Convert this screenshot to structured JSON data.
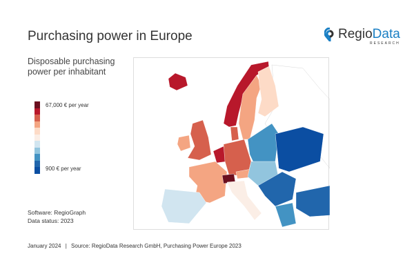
{
  "header": {
    "title": "Purchasing power in Europe",
    "subtitle": "Disposable purchasing power per inhabitant"
  },
  "logo": {
    "name_part1": "Regio",
    "name_part2": "Data",
    "tagline": "RESEARCH"
  },
  "legend": {
    "max_label": "67,000 € per year",
    "min_label": "900 € per year",
    "colors": [
      "#6b0f1f",
      "#b8182b",
      "#d6604d",
      "#f4a582",
      "#fddbc7",
      "#fbeee6",
      "#d1e5f0",
      "#92c5de",
      "#4393c3",
      "#2166ac",
      "#0b4ea2"
    ]
  },
  "info": {
    "software": "Software: RegioGraph",
    "data_status": "Data status: 2023"
  },
  "footer": {
    "date": "January 2024",
    "source": "Source: RegioData Research GmbH, Purchasing Power Europe 2023"
  }
}
